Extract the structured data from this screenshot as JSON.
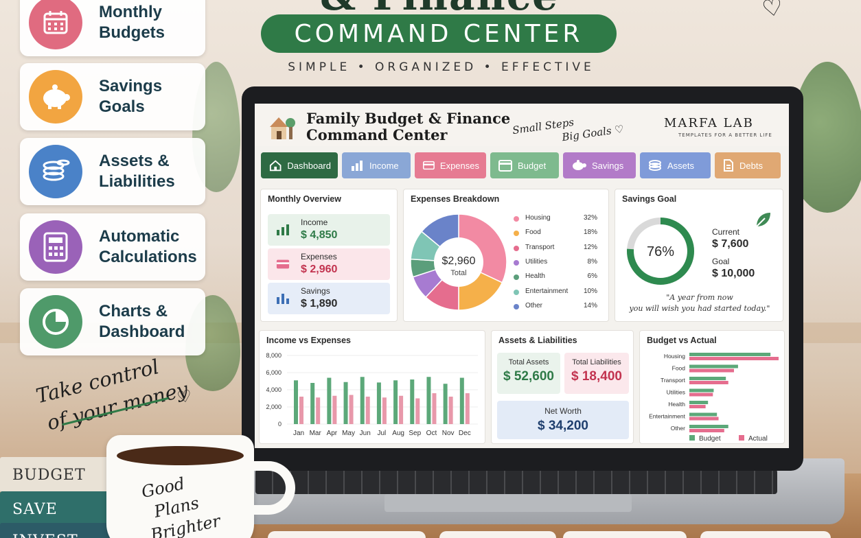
{
  "poster": {
    "title_top": "& Finance",
    "command_center": "COMMAND CENTER",
    "tagline": "SIMPLE  •  ORGANIZED  •  EFFECTIVE",
    "handwriting_left": [
      "Take control",
      "of your money"
    ],
    "mug_text": [
      "Good",
      "Plans",
      "Brighter"
    ],
    "books": [
      "BUDGET",
      "SAVE",
      "INVEST"
    ]
  },
  "features": [
    {
      "label_1": "Monthly",
      "label_2": "Budgets",
      "color": "#e06b80",
      "icon": "calendar-icon"
    },
    {
      "label_1": "Savings",
      "label_2": "Goals",
      "color": "#f2a541",
      "icon": "piggy-bank-icon"
    },
    {
      "label_1": "Assets &",
      "label_2": "Liabilities",
      "color": "#4a82c8",
      "icon": "coins-icon"
    },
    {
      "label_1": "Automatic",
      "label_2": "Calculations",
      "color": "#9a62b8",
      "icon": "calculator-icon"
    },
    {
      "label_1": "Charts &",
      "label_2": "Dashboard",
      "color": "#4f9a6a",
      "icon": "pie-chart-icon"
    }
  ],
  "app": {
    "title_line1": "Family Budget & Finance",
    "title_line2": "Command Center",
    "motto_1": "Small Steps",
    "motto_2": "Big Goals ♡",
    "brand": "MARFA LAB",
    "brand_sub": "TEMPLATES FOR A BETTER LIFE",
    "tabs": [
      {
        "label": "Dashboard",
        "color": "#2e6a43",
        "icon": "home-icon"
      },
      {
        "label": "Income",
        "color": "#8aa7d6",
        "icon": "bar-chart-icon"
      },
      {
        "label": "Expenses",
        "color": "#e67b92",
        "icon": "credit-card-icon"
      },
      {
        "label": "Budget",
        "color": "#7eba8e",
        "icon": "calendar-icon"
      },
      {
        "label": "Savings",
        "color": "#b27bc8",
        "icon": "piggy-bank-icon"
      },
      {
        "label": "Assets",
        "color": "#7f9bd9",
        "icon": "coins-icon"
      },
      {
        "label": "Debts",
        "color": "#e0a873",
        "icon": "document-icon"
      }
    ]
  },
  "overview": {
    "title": "Monthly Overview",
    "items": [
      {
        "label": "Income",
        "value": "$ 4,850",
        "color": "#2e7a47",
        "bg": "#e8f2ea"
      },
      {
        "label": "Expenses",
        "value": "$ 2,960",
        "color": "#c2334f",
        "bg": "#fbe6ea"
      },
      {
        "label": "Savings",
        "value": "$ 1,890",
        "color": "#2b2b2b",
        "bg": "#e6edf8"
      }
    ]
  },
  "expenses": {
    "title": "Expenses Breakdown",
    "center_value": "$2,960",
    "center_label": "Total"
  },
  "savings": {
    "title": "Savings Goal",
    "percent_text": "76%",
    "current_label": "Current",
    "current_value": "$ 7,600",
    "goal_label": "Goal",
    "goal_value": "$ 10,000",
    "quote_1": "\"A year from now",
    "quote_2": "you will wish you had started today.\""
  },
  "income_vs_expenses_title": "Income vs Expenses",
  "assets_liabilities": {
    "title": "Assets & Liabilities",
    "total_assets_label": "Total Assets",
    "total_assets_value": "$ 52,600",
    "total_liabilities_label": "Total Liabilities",
    "total_liabilities_value": "$ 18,400",
    "net_worth_label": "Net Worth",
    "net_worth_value": "$ 34,200"
  },
  "budget_vs_actual_title": "Budget vs Actual",
  "chart_data": [
    {
      "type": "pie",
      "title": "Expenses Breakdown",
      "categories": [
        "Housing",
        "Food",
        "Transport",
        "Utilities",
        "Health",
        "Entertainment",
        "Other"
      ],
      "values": [
        32,
        18,
        12,
        8,
        6,
        10,
        14
      ],
      "labels": [
        "32%",
        "18%",
        "12%",
        "8%",
        "6%",
        "10%",
        "14%"
      ],
      "colors": [
        "#f28aa3",
        "#f5b04a",
        "#e56d8e",
        "#a77bd1",
        "#5b9e7b",
        "#7fc5b5",
        "#6a83c9"
      ]
    },
    {
      "type": "bar",
      "title": "Income vs Expenses",
      "categories": [
        "Jan",
        "Mar",
        "Apr",
        "May",
        "Jun",
        "Jul",
        "Aug",
        "Sep",
        "Oct",
        "Nov",
        "Dec"
      ],
      "yticks": [
        "8,000",
        "6,000",
        "4,000",
        "2,000",
        "0"
      ],
      "ylim": [
        0,
        8000
      ],
      "series": [
        {
          "values": [
            5100,
            4800,
            5400,
            4900,
            5500,
            4850,
            5100,
            5200,
            5500,
            4700,
            5400
          ],
          "color": "#5ca879"
        },
        {
          "values": [
            3200,
            3100,
            3300,
            3400,
            3200,
            3100,
            3300,
            3000,
            3600,
            3200,
            3600
          ],
          "color": "#e898aa"
        }
      ]
    },
    {
      "type": "bar",
      "title": "Budget vs Actual",
      "orientation": "horizontal",
      "categories": [
        "Housing",
        "Food",
        "Transport",
        "Utilities",
        "Health",
        "Entertainment",
        "Other"
      ],
      "series": [
        {
          "name": "Budget",
          "values": [
            1000,
            600,
            450,
            300,
            230,
            340,
            480
          ],
          "color": "#5ca879"
        },
        {
          "name": "Actual",
          "values": [
            1100,
            550,
            480,
            290,
            200,
            360,
            430
          ],
          "color": "#e56d8e"
        }
      ]
    }
  ]
}
